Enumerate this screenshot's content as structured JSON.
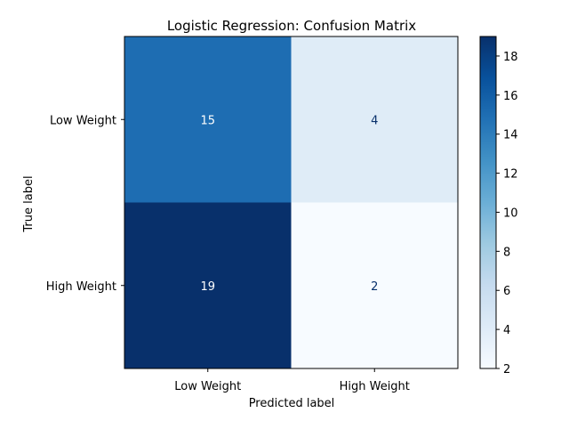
{
  "chart_data": {
    "type": "heatmap",
    "title": "Logistic Regression: Confusion Matrix",
    "xlabel": "Predicted label",
    "ylabel": "True label",
    "x_categories": [
      "Low Weight",
      "High Weight"
    ],
    "y_categories": [
      "Low Weight",
      "High Weight"
    ],
    "values": [
      [
        15,
        4
      ],
      [
        19,
        2
      ]
    ],
    "colormap": "Blues",
    "colorbar": {
      "range": [
        2,
        19
      ],
      "ticks": [
        2,
        4,
        6,
        8,
        10,
        12,
        14,
        16,
        18
      ]
    },
    "colors": {
      "low": "#f7fbff",
      "high": "#08306b",
      "text_light": "#ffffff",
      "text_dark": "#08306b"
    }
  }
}
